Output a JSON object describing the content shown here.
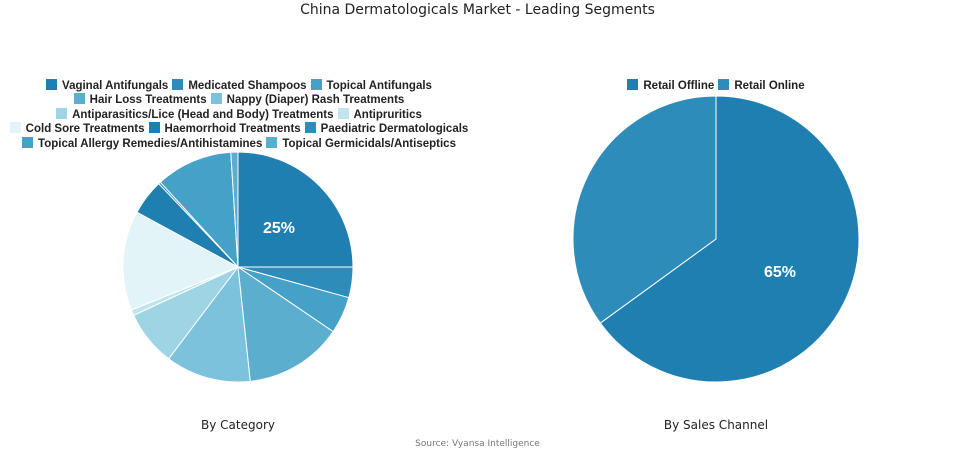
{
  "title": "China Dermatologicals Market - Leading Segments",
  "source": "Source: Vyansa Intelligence",
  "chart_data": [
    {
      "type": "pie",
      "title": "By Category",
      "categories": [
        "Vaginal Antifungals",
        "Medicated Shampoos",
        "Topical Antifungals",
        "Hair Loss Treatments",
        "Nappy (Diaper) Rash Treatments",
        "Antiparasitics/Lice (Head and Body) Treatments",
        "Antipruritics",
        "Cold Sore Treatments",
        "Haemorrhoid Treatments",
        "Paediatric Dermatologicals",
        "Topical Allergy Remedies/Antihistamines",
        "Topical Germicidals/Antiseptics"
      ],
      "values": [
        25,
        4.3,
        5.2,
        13.8,
        12,
        7.8,
        0.8,
        14,
        5,
        0.3,
        10.8,
        1
      ],
      "colors": [
        "#1f7fb0",
        "#2d8cba",
        "#45a1c8",
        "#5caece",
        "#7cc2dc",
        "#9fd4e5",
        "#c0e5ef",
        "#e3f4f9",
        "#1f7fb0",
        "#2d8cba",
        "#45a1c8",
        "#5caece"
      ],
      "labels_shown": {
        "Vaginal Antifungals": "25%"
      },
      "legend_position": "top"
    },
    {
      "type": "pie",
      "title": "By Sales Channel",
      "categories": [
        "Retail Offline",
        "Retail Online"
      ],
      "values": [
        65,
        35
      ],
      "colors": [
        "#1f7fb0",
        "#2d8cba"
      ],
      "labels_shown": {
        "Retail Offline": "65%"
      },
      "legend_position": "top"
    }
  ],
  "left": {
    "subtitle": "By Category",
    "label": "25%",
    "legend_rows": [
      [
        {
          "name": "Vaginal Antifungals",
          "color": "#1f7fb0"
        },
        {
          "name": "Medicated Shampoos",
          "color": "#2d8cba"
        },
        {
          "name": "Topical Antifungals",
          "color": "#45a1c8"
        }
      ],
      [
        {
          "name": "Hair Loss Treatments",
          "color": "#5caece"
        },
        {
          "name": "Nappy (Diaper) Rash Treatments",
          "color": "#7cc2dc"
        }
      ],
      [
        {
          "name": "Antiparasitics/Lice (Head and Body) Treatments",
          "color": "#9fd4e5"
        },
        {
          "name": "Antipruritics",
          "color": "#c0e5ef"
        }
      ],
      [
        {
          "name": "Cold Sore Treatments",
          "color": "#e3f4f9"
        },
        {
          "name": "Haemorrhoid Treatments",
          "color": "#1f7fb0"
        },
        {
          "name": "Paediatric Dermatologicals",
          "color": "#2d8cba"
        }
      ],
      [
        {
          "name": "Topical Allergy Remedies/Antihistamines",
          "color": "#45a1c8"
        },
        {
          "name": "Topical Germicidals/Antiseptics",
          "color": "#5caece"
        }
      ]
    ]
  },
  "right": {
    "subtitle": "By Sales Channel",
    "label": "65%",
    "legend_rows": [
      [
        {
          "name": "Retail Offline",
          "color": "#1f7fb0"
        },
        {
          "name": "Retail Online",
          "color": "#2d8cba"
        }
      ]
    ]
  }
}
